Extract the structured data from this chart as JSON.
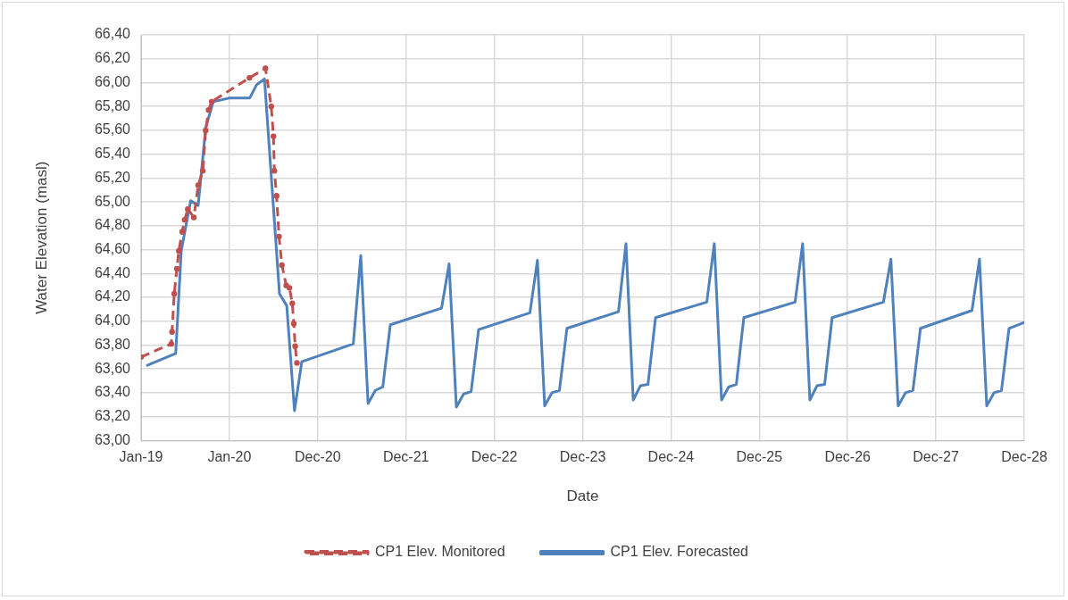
{
  "chart_data": {
    "type": "line",
    "xlabel": "Date",
    "ylabel": "Water Elevation (masl)",
    "xlim": [
      "2019-01-01",
      "2028-12-29"
    ],
    "xticks": [
      {
        "value": "2019-01-01",
        "label": "Jan-19"
      },
      {
        "value": "2020-01-01",
        "label": "Jan-20"
      },
      {
        "value": "2020-12-31",
        "label": "Dec-20"
      },
      {
        "value": "2021-12-31",
        "label": "Dec-21"
      },
      {
        "value": "2022-12-31",
        "label": "Dec-22"
      },
      {
        "value": "2023-12-31",
        "label": "Dec-23"
      },
      {
        "value": "2024-12-30",
        "label": "Dec-24"
      },
      {
        "value": "2025-12-30",
        "label": "Dec-25"
      },
      {
        "value": "2026-12-30",
        "label": "Dec-26"
      },
      {
        "value": "2027-12-30",
        "label": "Dec-27"
      },
      {
        "value": "2028-12-29",
        "label": "Dec-28"
      }
    ],
    "ylim": [
      63,
      66.4
    ],
    "yticks": [
      {
        "value": 63,
        "label": "63,00"
      },
      {
        "value": 63.2,
        "label": "63,20"
      },
      {
        "value": 63.4,
        "label": "63,40"
      },
      {
        "value": 63.6,
        "label": "63,60"
      },
      {
        "value": 63.8,
        "label": "63,80"
      },
      {
        "value": 64,
        "label": "64,00"
      },
      {
        "value": 64.2,
        "label": "64,20"
      },
      {
        "value": 64.4,
        "label": "64,40"
      },
      {
        "value": 64.6,
        "label": "64,60"
      },
      {
        "value": 64.8,
        "label": "64,80"
      },
      {
        "value": 65,
        "label": "65,00"
      },
      {
        "value": 65.2,
        "label": "65,20"
      },
      {
        "value": 65.4,
        "label": "65,40"
      },
      {
        "value": 65.6,
        "label": "65,60"
      },
      {
        "value": 65.8,
        "label": "65,80"
      },
      {
        "value": 66,
        "label": "66,00"
      },
      {
        "value": 66.2,
        "label": "66,20"
      },
      {
        "value": 66.4,
        "label": "66,40"
      }
    ],
    "grid": true,
    "legend": "bottom",
    "series": [
      {
        "name": "CP1 Elev. Monitored",
        "color": "#c0504d",
        "marker": "circle",
        "line_style": "dashed",
        "x": [
          "2019-01-01",
          "2019-05-06",
          "2019-05-09",
          "2019-05-18",
          "2019-05-29",
          "2019-06-06",
          "2019-06-20",
          "2019-06-30",
          "2019-07-13",
          "2019-08-07",
          "2019-08-25",
          "2019-09-13",
          "2019-09-25",
          "2019-10-07",
          "2019-10-20",
          "2020-03-24",
          "2020-05-29",
          "2020-06-22",
          "2020-07-01",
          "2020-07-05",
          "2020-07-14",
          "2020-07-24",
          "2020-08-05",
          "2020-08-23",
          "2020-09-05",
          "2020-09-17",
          "2020-09-23",
          "2020-09-29",
          "2020-10-06"
        ],
        "values": [
          63.7,
          63.81,
          63.91,
          64.23,
          64.44,
          64.59,
          64.75,
          64.85,
          64.94,
          64.87,
          65.14,
          65.26,
          65.6,
          65.77,
          65.84,
          66.04,
          66.12,
          65.8,
          65.55,
          65.26,
          65.05,
          64.71,
          64.47,
          64.3,
          64.28,
          64.15,
          63.98,
          63.79,
          63.65
        ]
      },
      {
        "name": "CP1 Elev. Forecasted",
        "color": "#4f81bd",
        "marker": "none",
        "line_style": "solid",
        "x": [
          "2019-01-27",
          "2019-05-24",
          "2019-06-16",
          "2019-07-25",
          "2019-08-25",
          "2019-09-25",
          "2019-10-26",
          "2019-12-31",
          "2020-03-25",
          "2020-04-22",
          "2020-05-25",
          "2020-07-26",
          "2020-08-25",
          "2020-09-26",
          "2020-10-26",
          "2021-05-27",
          "2021-06-27",
          "2021-07-27",
          "2021-08-26",
          "2021-09-26",
          "2021-10-27",
          "2022-05-27",
          "2022-06-27",
          "2022-07-27",
          "2022-08-26",
          "2022-09-26",
          "2022-10-27",
          "2023-05-27",
          "2023-06-27",
          "2023-07-27",
          "2023-08-26",
          "2023-09-26",
          "2023-10-27",
          "2024-05-27",
          "2024-06-27",
          "2024-07-27",
          "2024-08-26",
          "2024-09-26",
          "2024-10-27",
          "2025-05-27",
          "2025-06-27",
          "2025-07-27",
          "2025-08-26",
          "2025-09-26",
          "2025-10-27",
          "2026-05-27",
          "2026-06-27",
          "2026-07-27",
          "2026-08-26",
          "2026-09-26",
          "2026-10-27",
          "2027-05-27",
          "2027-06-27",
          "2027-07-27",
          "2027-08-26",
          "2027-09-26",
          "2027-10-27",
          "2028-05-27",
          "2028-06-27",
          "2028-07-27",
          "2028-08-26",
          "2028-09-26",
          "2028-10-27",
          "2028-12-29"
        ],
        "values": [
          63.63,
          63.73,
          64.59,
          65.01,
          64.97,
          65.62,
          65.84,
          65.87,
          65.87,
          65.98,
          66.03,
          64.23,
          64.13,
          63.25,
          63.66,
          63.81,
          64.55,
          63.31,
          63.42,
          63.45,
          63.97,
          64.11,
          64.48,
          63.28,
          63.39,
          63.41,
          63.93,
          64.07,
          64.51,
          63.29,
          63.4,
          63.42,
          63.94,
          64.08,
          64.65,
          63.34,
          63.46,
          63.47,
          64.03,
          64.16,
          64.65,
          63.34,
          63.45,
          63.47,
          64.03,
          64.16,
          64.65,
          63.34,
          63.46,
          63.47,
          64.03,
          64.16,
          64.52,
          63.29,
          63.4,
          63.42,
          63.94,
          64.09,
          64.52,
          63.29,
          63.4,
          63.42,
          63.94,
          63.99
        ]
      }
    ]
  }
}
